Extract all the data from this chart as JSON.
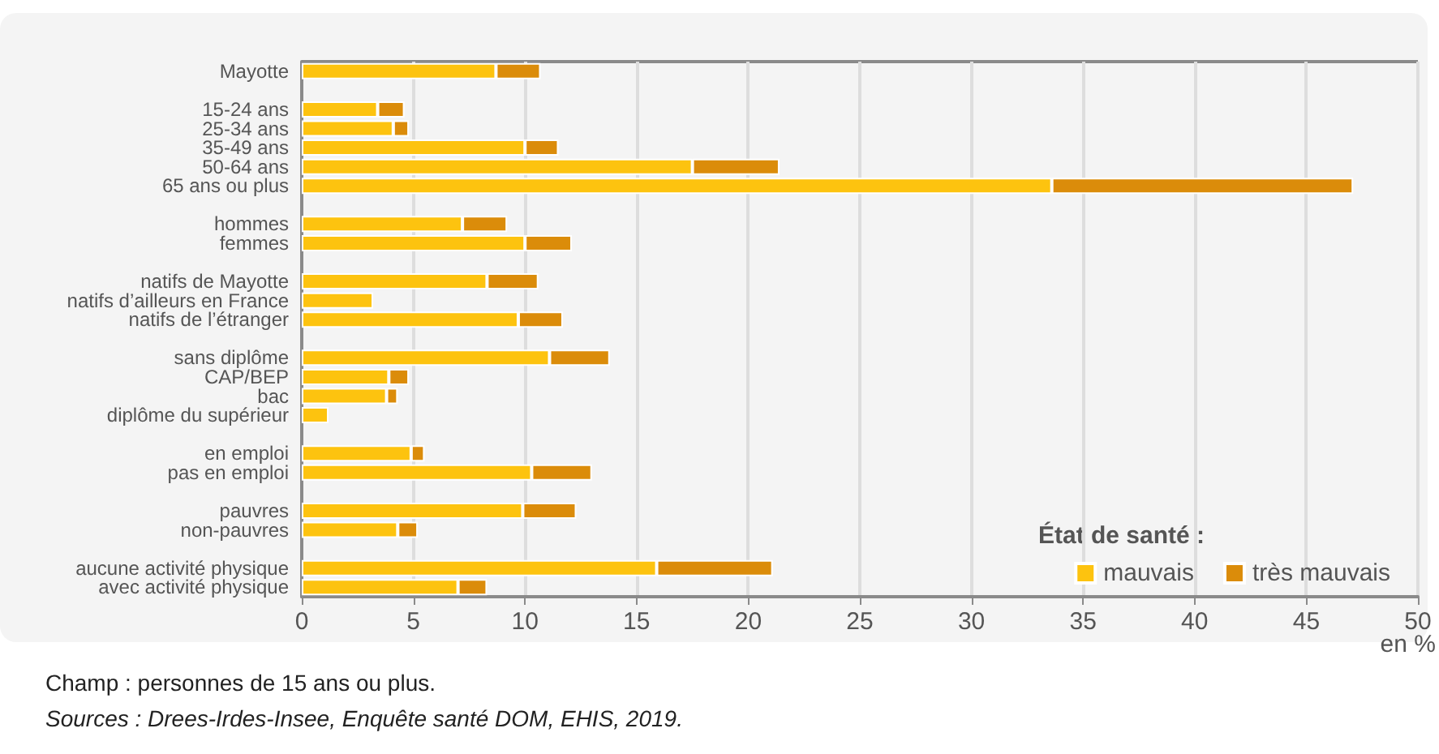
{
  "chart_data": {
    "type": "bar",
    "orientation": "horizontal",
    "stacked": true,
    "categories": [
      "Mayotte",
      null,
      "15-24 ans",
      "25-34 ans",
      "35-49 ans",
      "50-64 ans",
      "65 ans ou plus",
      null,
      "hommes",
      "femmes",
      null,
      "natifs de Mayotte",
      "natifs d’ailleurs en France",
      "natifs de l’étranger",
      null,
      "sans diplôme",
      "CAP/BEP",
      "bac",
      "diplôme du supérieur",
      null,
      "en emploi",
      "pas en emploi",
      null,
      "pauvres",
      "non-pauvres",
      null,
      "aucune activité physique",
      "avec activité physique"
    ],
    "series": [
      {
        "name": "mauvais",
        "color": "#fdc30f",
        "values": [
          8.7,
          null,
          3.4,
          4.1,
          10.0,
          17.5,
          33.6,
          null,
          7.2,
          10.0,
          null,
          8.3,
          3.2,
          9.7,
          null,
          11.1,
          3.9,
          3.8,
          1.2,
          null,
          4.9,
          10.3,
          null,
          9.9,
          4.3,
          null,
          15.9,
          7.0
        ]
      },
      {
        "name": "très mauvais",
        "color": "#db8c0a",
        "values": [
          2.0,
          null,
          1.2,
          0.7,
          1.5,
          3.9,
          13.5,
          null,
          2.0,
          2.1,
          null,
          2.3,
          null,
          2.0,
          null,
          2.7,
          0.9,
          0.5,
          null,
          null,
          0.6,
          2.7,
          null,
          2.4,
          0.9,
          null,
          5.2,
          1.3
        ]
      }
    ],
    "xlim": [
      0,
      50
    ],
    "xticks": [
      0,
      5,
      10,
      15,
      20,
      25,
      30,
      35,
      40,
      45,
      50
    ],
    "xlabel": "en %",
    "grid": "x",
    "legend": "bottom right",
    "legend_title": "État de santé :",
    "annotations": [
      "Champ : personnes de 15 ans ou plus.",
      "Sources : Drees-Irdes-Insee, Enquête santé DOM, EHIS, 2019."
    ]
  }
}
